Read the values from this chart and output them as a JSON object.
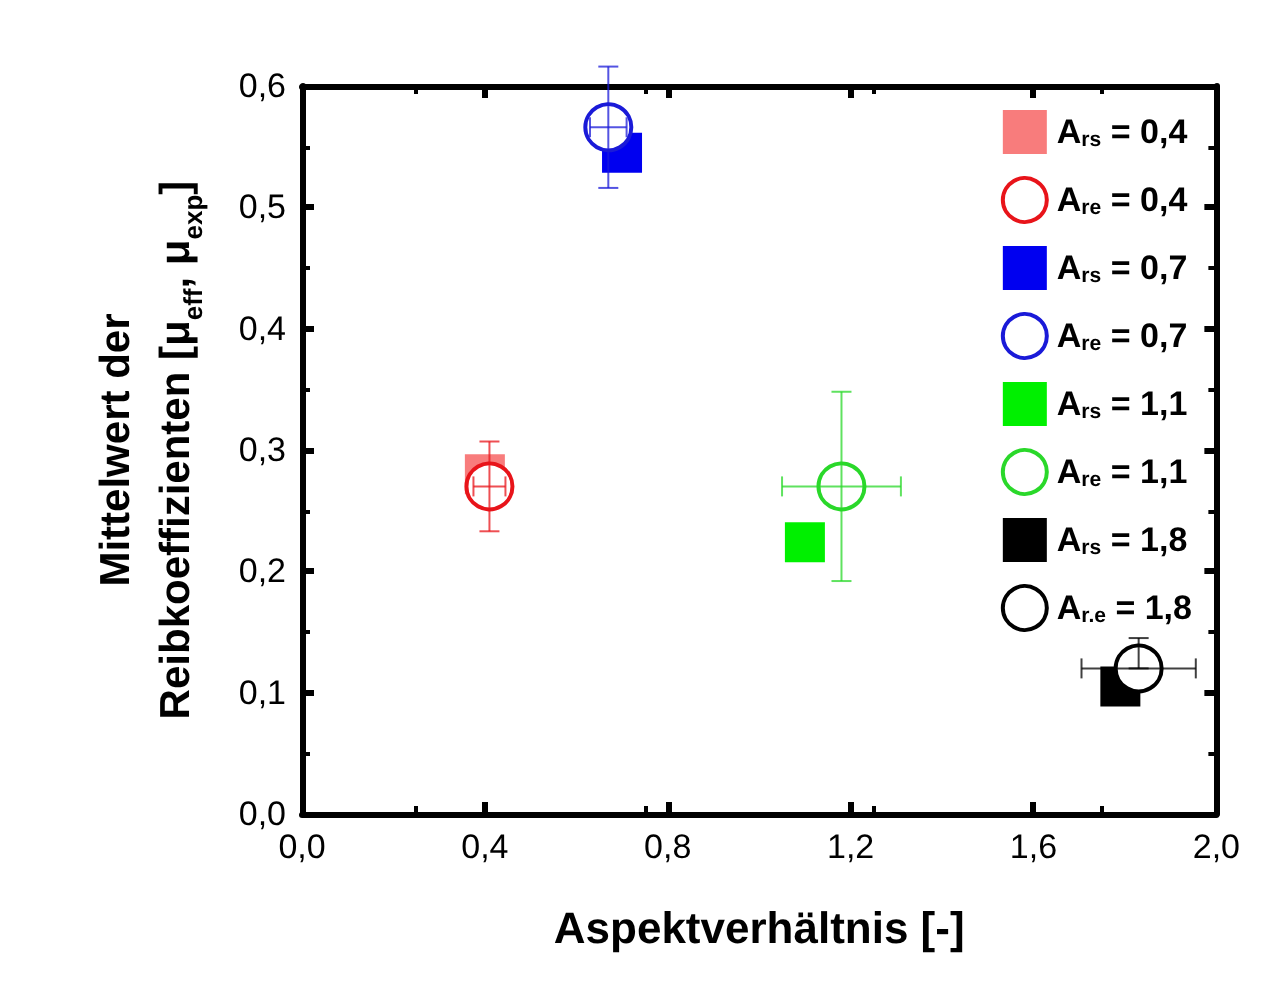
{
  "chart_data": {
    "type": "scatter",
    "xlabel": "Aspektverhältnis [-]",
    "ylabel": "Mittelwert der\nReibkoeffizienten [μ$_{eff}$, μ$_{exp}$]",
    "xlim": [
      0,
      2
    ],
    "xticks": [
      {
        "value": 0,
        "label": "0,0"
      },
      {
        "value": 0.4,
        "label": "0,4"
      },
      {
        "value": 0.8,
        "label": "0,8"
      },
      {
        "value": 1.2,
        "label": "1,2"
      },
      {
        "value": 1.6,
        "label": "1,6"
      },
      {
        "value": 2,
        "label": "2,0"
      }
    ],
    "ylim": [
      0,
      0.6
    ],
    "yticks": [
      {
        "value": 0,
        "label": "0,0"
      },
      {
        "value": 0.1,
        "label": "0,1"
      },
      {
        "value": 0.2,
        "label": "0,2"
      },
      {
        "value": 0.3,
        "label": "0,3"
      },
      {
        "value": 0.4,
        "label": "0,4"
      },
      {
        "value": 0.5,
        "label": "0,5"
      },
      {
        "value": 0.6,
        "label": "0,6"
      }
    ],
    "grid": false,
    "legend": "top right",
    "series": [
      {
        "name": "A$_{rs}$ = 0,4",
        "color": "#f87c7c",
        "marker": "square",
        "x": [
          0.4
        ],
        "values": [
          0.28
        ]
      },
      {
        "name": "A$_{re}$ = 0,4",
        "color": "#e8141a",
        "marker": "circle",
        "x": [
          0.41
        ],
        "values": [
          0.27
        ],
        "errors": [
          0.037
        ],
        "xerrors": [
          0.035
        ]
      },
      {
        "name": "A$_{rs}$ = 0,7",
        "color": "#0000f0",
        "marker": "square",
        "x": [
          0.7
        ],
        "values": [
          0.545
        ]
      },
      {
        "name": "A$_{re}$ = 0,7",
        "color": "#1a1ad8",
        "marker": "circle",
        "x": [
          0.67
        ],
        "values": [
          0.566
        ],
        "errors": [
          0.05
        ],
        "xerrors": [
          0.04
        ]
      },
      {
        "name": "A$_{rs}$ = 1,1",
        "color": "#00f000",
        "marker": "square",
        "x": [
          1.1
        ],
        "values": [
          0.224
        ]
      },
      {
        "name": "A$_{re}$ = 1,1",
        "color": "#2ad82a",
        "marker": "circle",
        "x": [
          1.18
        ],
        "values": [
          0.27
        ],
        "errors": [
          0.078
        ],
        "xerrors": [
          0.13
        ]
      },
      {
        "name": "A$_{rs}$ = 1,8",
        "color": "#000000",
        "marker": "square",
        "x": [
          1.79
        ],
        "values": [
          0.105
        ]
      },
      {
        "name": "A$_{r.e}$ = 1,8",
        "color": "#000000",
        "marker": "circle",
        "x": [
          1.83
        ],
        "values": [
          0.12
        ],
        "errors": [
          [
            0.12,
            0.145
          ]
        ],
        "xerrors": [
          0.125
        ]
      }
    ]
  }
}
